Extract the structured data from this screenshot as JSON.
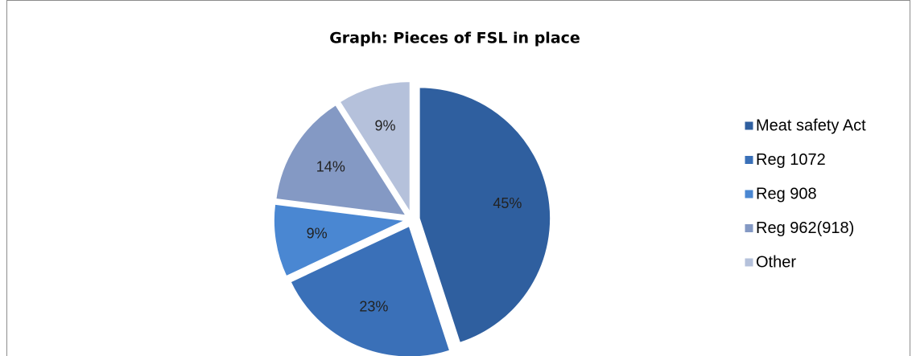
{
  "chart_data": {
    "type": "pie",
    "title": "Graph: Pieces of FSL in place",
    "categories": [
      "Meat safety Act",
      "Reg 1072",
      "Reg 908",
      "Reg 962(918)",
      "Other"
    ],
    "values": [
      45,
      23,
      9,
      14,
      9
    ],
    "value_labels": [
      "45%",
      "23%",
      "9%",
      "14%",
      "9%"
    ],
    "colors": [
      "#2f5f9f",
      "#3a70b8",
      "#4a87d2",
      "#8499c4",
      "#b5c1db"
    ],
    "legend": "right"
  }
}
